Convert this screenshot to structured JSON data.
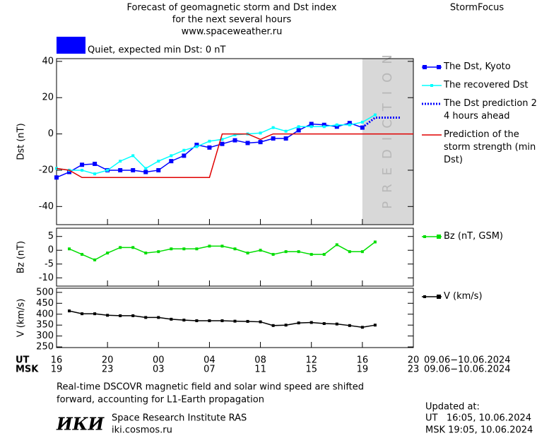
{
  "header": {
    "title_lines": [
      "Forecast of geomagnetic storm and Dst index",
      "for the next several hours",
      "www.spaceweather.ru"
    ],
    "brand": "StormFocus",
    "status_text": "Quiet, expected min Dst: 0 nT",
    "status_color": "#0000ff"
  },
  "time_axis": {
    "xlim": [
      0,
      28
    ],
    "ut_label": "UT",
    "msk_label": "MSK",
    "ut_date": "09.06−10.06.2024",
    "msk_date": "09.06−10.06.2024",
    "ut_ticks": [
      {
        "value": 0,
        "label": "16"
      },
      {
        "value": 4,
        "label": "20"
      },
      {
        "value": 8,
        "label": "00"
      },
      {
        "value": 12,
        "label": "04"
      },
      {
        "value": 16,
        "label": "08"
      },
      {
        "value": 20,
        "label": "12"
      },
      {
        "value": 24,
        "label": "16"
      },
      {
        "value": 28,
        "label": "20"
      }
    ],
    "msk_ticks": [
      {
        "value": 0,
        "label": "19"
      },
      {
        "value": 4,
        "label": "23"
      },
      {
        "value": 8,
        "label": "03"
      },
      {
        "value": 12,
        "label": "07"
      },
      {
        "value": 16,
        "label": "11"
      },
      {
        "value": 20,
        "label": "15"
      },
      {
        "value": 24,
        "label": "19"
      },
      {
        "value": 28,
        "label": "23"
      }
    ],
    "prediction_xlim": [
      24,
      28
    ],
    "prediction_label": "PREDICTION",
    "prediction_color": "#d8d8d8"
  },
  "chart_data": [
    {
      "type": "line",
      "y_label": "Dst (nT)",
      "ylim": [
        -50,
        41.5
      ],
      "yticks": [
        40,
        20,
        0,
        -20,
        -40
      ],
      "series": [
        {
          "name": "The Dst, Kyoto",
          "color": "#0000ff",
          "marker": "square",
          "dash": false,
          "x": [
            0,
            1,
            2,
            3,
            4,
            5,
            6,
            7,
            8,
            9,
            10,
            11,
            12,
            13,
            14,
            15,
            16,
            17,
            18,
            19,
            20,
            21,
            22,
            23,
            24
          ],
          "values": [
            -24,
            -21,
            -17,
            -16.5,
            -20,
            -20,
            -20,
            -21,
            -20,
            -15,
            -12,
            -6,
            -7.5,
            -5.5,
            -3.5,
            -5,
            -4.5,
            -2.5,
            -2.5,
            2,
            5.5,
            5,
            4,
            6,
            3.5
          ]
        },
        {
          "name": "The recovered Dst",
          "color": "#00ffff",
          "marker": "small-square",
          "dash": false,
          "x": [
            0,
            1,
            2,
            3,
            4,
            5,
            6,
            7,
            8,
            9,
            10,
            11,
            12,
            13,
            14,
            15,
            16,
            17,
            18,
            19,
            20,
            21,
            22,
            23,
            24,
            25
          ],
          "values": [
            -19,
            -20,
            -20,
            -22,
            -20,
            -15,
            -12,
            -19,
            -15,
            -12,
            -9,
            -7,
            -4,
            -3,
            -0.5,
            0,
            0.5,
            3.5,
            1.5,
            4,
            4,
            4,
            5,
            5,
            6.5,
            10.5
          ]
        },
        {
          "name": "The Dst prediction 2–4 hours ahead",
          "color": "#0000ff",
          "marker": "none",
          "dash": true,
          "x": [
            24,
            25,
            26,
            27
          ],
          "values": [
            3.5,
            9,
            9,
            9
          ]
        },
        {
          "name": "Prediction of the storm strength (min Dst)",
          "color": "#e00000",
          "marker": "none",
          "dash": false,
          "x": [
            0,
            1,
            2,
            12,
            13,
            15,
            16,
            17,
            28
          ],
          "values": [
            -19,
            -20,
            -24,
            -24,
            0,
            0,
            -3,
            0,
            0
          ]
        }
      ]
    },
    {
      "type": "line",
      "y_label": "Bz (nT)",
      "ylim": [
        -13,
        8
      ],
      "yticks": [
        5,
        0,
        -5,
        -10
      ],
      "series": [
        {
          "name": "Bz (nT, GSM)",
          "color": "#00dd00",
          "marker": "small-square",
          "dash": false,
          "x": [
            1,
            2,
            3,
            4,
            5,
            6,
            7,
            8,
            9,
            10,
            11,
            12,
            13,
            14,
            15,
            16,
            17,
            18,
            19,
            20,
            21,
            22,
            23,
            24,
            25
          ],
          "values": [
            0.5,
            -1.5,
            -3.5,
            -1,
            1,
            1,
            -1,
            -0.5,
            0.5,
            0.5,
            0.5,
            1.5,
            1.5,
            0.5,
            -1,
            0,
            -1.5,
            -0.5,
            -0.5,
            -1.5,
            -1.5,
            2,
            -0.5,
            -0.5,
            3
          ]
        }
      ]
    },
    {
      "type": "line",
      "y_label": "V (km/s)",
      "ylim": [
        247,
        519
      ],
      "yticks": [
        500,
        450,
        400,
        350,
        300,
        250
      ],
      "series": [
        {
          "name": "V (km/s)",
          "color": "#000000",
          "marker": "small-square",
          "dash": false,
          "x": [
            1,
            2,
            3,
            4,
            5,
            6,
            7,
            8,
            9,
            10,
            11,
            12,
            13,
            14,
            15,
            16,
            17,
            18,
            19,
            20,
            21,
            22,
            23,
            24,
            25
          ],
          "values": [
            415,
            402,
            402,
            395,
            393,
            393,
            385,
            385,
            377,
            373,
            370,
            370,
            370,
            368,
            367,
            365,
            348,
            350,
            360,
            362,
            357,
            355,
            348,
            340,
            350
          ]
        }
      ]
    }
  ],
  "footer": {
    "note_lines": [
      "Real-time DSCOVR magnetic field and solar wind speed are shifted",
      "forward, accounting for L1-Earth propagation"
    ],
    "logo": "ИКИ",
    "institute": "Space Research Institute RAS",
    "site": "iki.cosmos.ru",
    "updated_label": "Updated at:",
    "updated_ut": "UT   16:05, 10.06.2024",
    "updated_msk": "MSK 19:05, 10.06.2024"
  }
}
